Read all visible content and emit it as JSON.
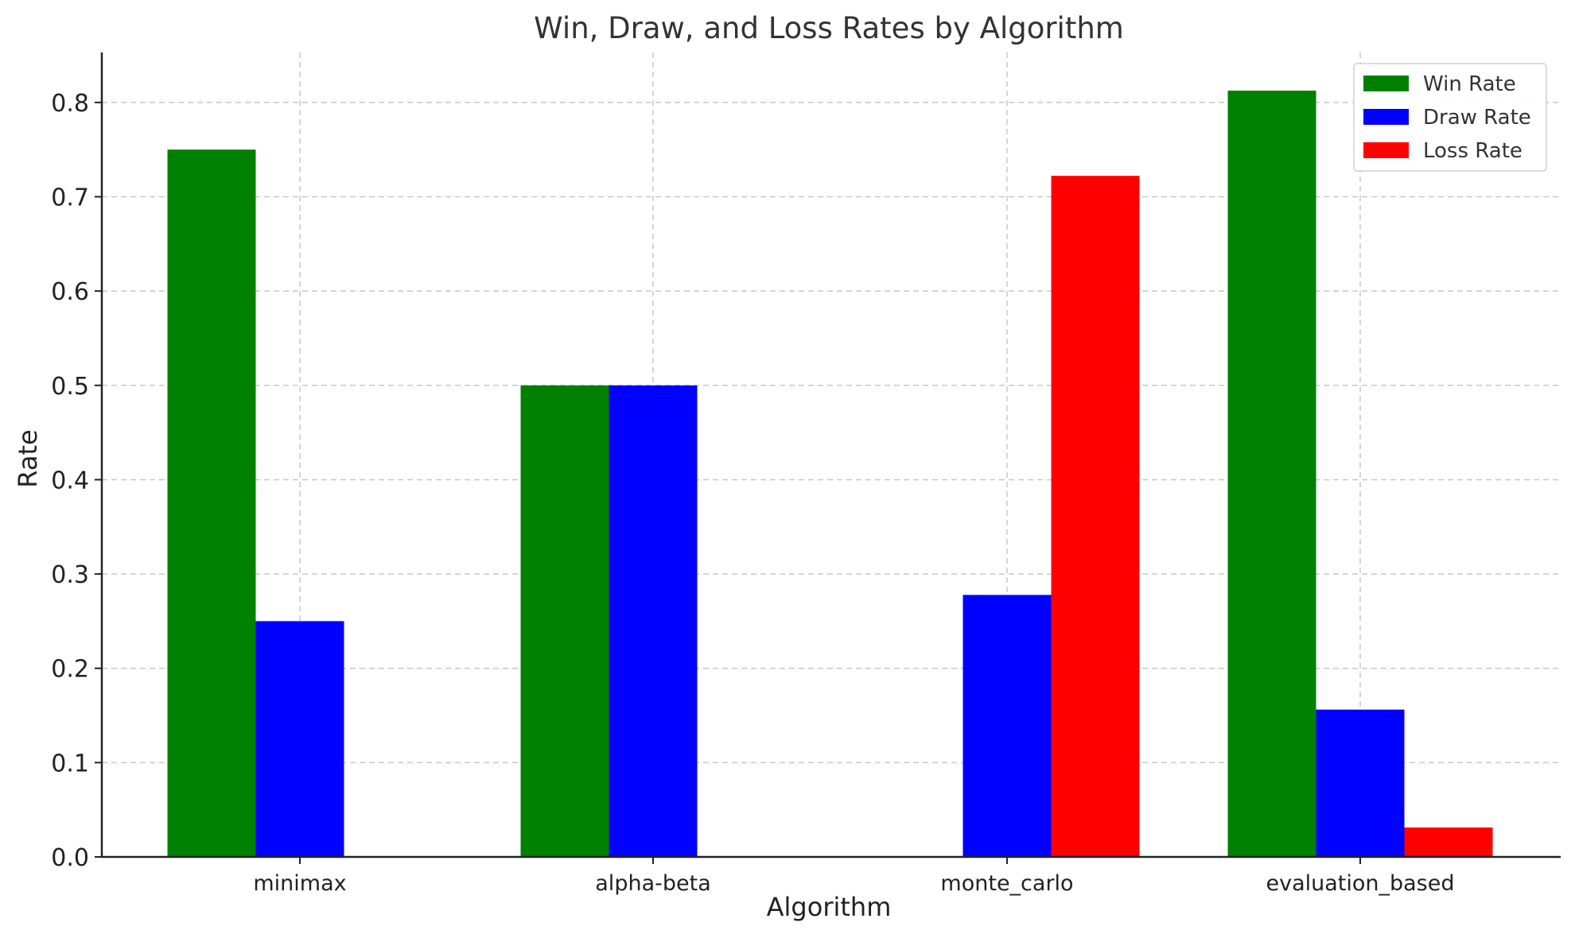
{
  "chart_data": {
    "type": "bar",
    "title": "Win, Draw, and Loss Rates by Algorithm",
    "xlabel": "Algorithm",
    "ylabel": "Rate",
    "categories": [
      "minimax",
      "alpha-beta",
      "monte_carlo",
      "evaluation_based"
    ],
    "series": [
      {
        "name": "Win Rate",
        "color": "#008000",
        "values": [
          0.75,
          0.5,
          0.0,
          0.8125
        ]
      },
      {
        "name": "Draw Rate",
        "color": "#0000ff",
        "values": [
          0.25,
          0.5,
          0.2778,
          0.1562
        ]
      },
      {
        "name": "Loss Rate",
        "color": "#ff0000",
        "values": [
          0.0,
          0.0,
          0.7222,
          0.0312
        ]
      }
    ],
    "ylim": [
      0,
      0.853
    ],
    "yticks": [
      "0.0",
      "0.1",
      "0.2",
      "0.3",
      "0.4",
      "0.5",
      "0.6",
      "0.7",
      "0.8"
    ],
    "grid": true,
    "legend": "top-right"
  }
}
